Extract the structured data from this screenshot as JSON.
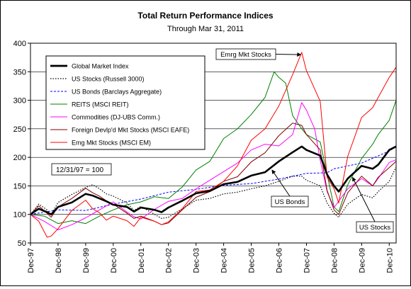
{
  "chart_data": {
    "type": "line",
    "title": "Total Return Performance Indices",
    "subtitle": "Through Mar 31, 2011",
    "xlabel": "",
    "ylabel": "",
    "ylim": [
      50,
      400
    ],
    "yticks": [
      50,
      100,
      150,
      200,
      250,
      300,
      350,
      400
    ],
    "xlim": [
      1998.0,
      2011.25
    ],
    "xticks": [
      "Dec-97",
      "Dec-98",
      "Dec-99",
      "Dec-00",
      "Dec-01",
      "Dec-02",
      "Dec-03",
      "Dec-04",
      "Dec-05",
      "Dec-06",
      "Dec-07",
      "Dec-08",
      "Dec-09",
      "Dec-10"
    ],
    "grid": "horizontal",
    "legend_position": "top-left",
    "base_note": "12/31/97 = 100",
    "series": [
      {
        "name": "Global Market Index",
        "color": "#000000",
        "style": "solid-thick",
        "points": [
          [
            1998.0,
            100
          ],
          [
            1998.3,
            110
          ],
          [
            1998.6,
            104
          ],
          [
            1998.75,
            100
          ],
          [
            1999.0,
            113
          ],
          [
            1999.5,
            121
          ],
          [
            2000.0,
            136
          ],
          [
            2000.25,
            133
          ],
          [
            2000.5,
            128
          ],
          [
            2000.75,
            123
          ],
          [
            2001.0,
            117
          ],
          [
            2001.5,
            113
          ],
          [
            2001.75,
            105
          ],
          [
            2002.0,
            112
          ],
          [
            2002.5,
            108
          ],
          [
            2002.75,
            104
          ],
          [
            2003.0,
            112
          ],
          [
            2003.5,
            124
          ],
          [
            2004.0,
            137
          ],
          [
            2004.5,
            141
          ],
          [
            2005.0,
            153
          ],
          [
            2005.5,
            157
          ],
          [
            2006.0,
            168
          ],
          [
            2006.5,
            174
          ],
          [
            2007.0,
            193
          ],
          [
            2007.5,
            209
          ],
          [
            2007.83,
            219
          ],
          [
            2008.0,
            213
          ],
          [
            2008.5,
            203
          ],
          [
            2008.75,
            170
          ],
          [
            2009.0,
            150
          ],
          [
            2009.17,
            140
          ],
          [
            2009.5,
            163
          ],
          [
            2010.0,
            185
          ],
          [
            2010.4,
            180
          ],
          [
            2010.6,
            187
          ],
          [
            2011.0,
            213
          ],
          [
            2011.25,
            219
          ]
        ]
      },
      {
        "name": "US Stocks (Russell 3000)",
        "color": "#000000",
        "style": "dotted",
        "points": [
          [
            1998.0,
            100
          ],
          [
            1998.3,
            118
          ],
          [
            1998.6,
            108
          ],
          [
            1998.75,
            99
          ],
          [
            1999.0,
            121
          ],
          [
            1999.5,
            135
          ],
          [
            2000.0,
            147
          ],
          [
            2000.25,
            152
          ],
          [
            2000.5,
            145
          ],
          [
            2000.75,
            136
          ],
          [
            2001.0,
            132
          ],
          [
            2001.5,
            120
          ],
          [
            2001.75,
            107
          ],
          [
            2002.0,
            114
          ],
          [
            2002.5,
            100
          ],
          [
            2002.75,
            93
          ],
          [
            2003.0,
            95
          ],
          [
            2003.5,
            110
          ],
          [
            2004.0,
            125
          ],
          [
            2004.5,
            128
          ],
          [
            2005.0,
            136
          ],
          [
            2005.5,
            139
          ],
          [
            2006.0,
            145
          ],
          [
            2006.5,
            150
          ],
          [
            2007.0,
            158
          ],
          [
            2007.5,
            167
          ],
          [
            2007.83,
            167
          ],
          [
            2008.0,
            160
          ],
          [
            2008.5,
            150
          ],
          [
            2008.75,
            120
          ],
          [
            2009.0,
            102
          ],
          [
            2009.17,
            95
          ],
          [
            2009.5,
            118
          ],
          [
            2010.0,
            135
          ],
          [
            2010.4,
            129
          ],
          [
            2010.6,
            140
          ],
          [
            2011.0,
            158
          ],
          [
            2011.25,
            183
          ]
        ]
      },
      {
        "name": "US Bonds (Barclays Aggregate)",
        "color": "#0000ff",
        "style": "dashed",
        "points": [
          [
            1998.0,
            100
          ],
          [
            1999.0,
            108
          ],
          [
            2000.0,
            107
          ],
          [
            2001.0,
            118
          ],
          [
            2002.0,
            127
          ],
          [
            2003.0,
            139
          ],
          [
            2004.0,
            144
          ],
          [
            2005.0,
            151
          ],
          [
            2006.0,
            154
          ],
          [
            2007.0,
            162
          ],
          [
            2008.0,
            172
          ],
          [
            2008.75,
            173
          ],
          [
            2009.0,
            180
          ],
          [
            2010.0,
            190
          ],
          [
            2011.0,
            211
          ],
          [
            2011.25,
            219
          ]
        ]
      },
      {
        "name": "REITS (MSCI REIT)",
        "color": "#008000",
        "style": "solid",
        "points": [
          [
            1998.0,
            100
          ],
          [
            1998.5,
            97
          ],
          [
            1999.0,
            84
          ],
          [
            1999.5,
            89
          ],
          [
            2000.0,
            84
          ],
          [
            2000.5,
            97
          ],
          [
            2001.0,
            108
          ],
          [
            2001.5,
            117
          ],
          [
            2002.0,
            122
          ],
          [
            2002.5,
            131
          ],
          [
            2003.0,
            128
          ],
          [
            2003.5,
            148
          ],
          [
            2004.0,
            178
          ],
          [
            2004.5,
            193
          ],
          [
            2005.0,
            233
          ],
          [
            2005.5,
            250
          ],
          [
            2006.0,
            275
          ],
          [
            2006.5,
            305
          ],
          [
            2006.83,
            350
          ],
          [
            2007.0,
            340
          ],
          [
            2007.25,
            330
          ],
          [
            2007.5,
            273
          ],
          [
            2007.83,
            250
          ],
          [
            2008.0,
            240
          ],
          [
            2008.5,
            227
          ],
          [
            2008.75,
            170
          ],
          [
            2009.0,
            113
          ],
          [
            2009.17,
            105
          ],
          [
            2009.5,
            152
          ],
          [
            2010.0,
            198
          ],
          [
            2010.4,
            223
          ],
          [
            2010.6,
            240
          ],
          [
            2011.0,
            265
          ],
          [
            2011.25,
            300
          ]
        ]
      },
      {
        "name": "Commodities (DJ-UBS Comm.)",
        "color": "#ff00ff",
        "style": "solid",
        "points": [
          [
            1998.0,
            100
          ],
          [
            1998.5,
            88
          ],
          [
            1999.0,
            73
          ],
          [
            1999.5,
            82
          ],
          [
            2000.0,
            94
          ],
          [
            2000.5,
            108
          ],
          [
            2001.0,
            122
          ],
          [
            2001.5,
            104
          ],
          [
            2001.75,
            96
          ],
          [
            2002.0,
            92
          ],
          [
            2002.5,
            109
          ],
          [
            2003.0,
            123
          ],
          [
            2003.5,
            128
          ],
          [
            2004.0,
            145
          ],
          [
            2004.5,
            160
          ],
          [
            2005.0,
            175
          ],
          [
            2005.5,
            190
          ],
          [
            2006.0,
            213
          ],
          [
            2006.5,
            223
          ],
          [
            2007.0,
            220
          ],
          [
            2007.5,
            240
          ],
          [
            2007.83,
            296
          ],
          [
            2008.0,
            283
          ],
          [
            2008.3,
            250
          ],
          [
            2008.5,
            195
          ],
          [
            2008.75,
            140
          ],
          [
            2009.0,
            112
          ],
          [
            2009.5,
            145
          ],
          [
            2010.0,
            163
          ],
          [
            2010.4,
            150
          ],
          [
            2010.6,
            163
          ],
          [
            2011.0,
            191
          ],
          [
            2011.25,
            196
          ]
        ]
      },
      {
        "name": "Foreign Devlp'd Mkt Stocks (MSCI EAFE)",
        "color": "#800000",
        "style": "solid",
        "points": [
          [
            1998.0,
            100
          ],
          [
            1998.3,
            115
          ],
          [
            1998.6,
            102
          ],
          [
            1998.75,
            95
          ],
          [
            1999.0,
            113
          ],
          [
            1999.5,
            128
          ],
          [
            2000.0,
            146
          ],
          [
            2000.25,
            138
          ],
          [
            2000.5,
            132
          ],
          [
            2000.75,
            124
          ],
          [
            2001.0,
            118
          ],
          [
            2001.5,
            102
          ],
          [
            2001.75,
            93
          ],
          [
            2002.0,
            97
          ],
          [
            2002.5,
            88
          ],
          [
            2002.75,
            82
          ],
          [
            2003.0,
            85
          ],
          [
            2003.5,
            108
          ],
          [
            2004.0,
            130
          ],
          [
            2004.5,
            140
          ],
          [
            2005.0,
            158
          ],
          [
            2005.5,
            166
          ],
          [
            2006.0,
            192
          ],
          [
            2006.5,
            208
          ],
          [
            2007.0,
            238
          ],
          [
            2007.5,
            260
          ],
          [
            2007.83,
            256
          ],
          [
            2008.0,
            240
          ],
          [
            2008.5,
            213
          ],
          [
            2008.75,
            142
          ],
          [
            2009.0,
            108
          ],
          [
            2009.17,
            100
          ],
          [
            2009.5,
            138
          ],
          [
            2010.0,
            167
          ],
          [
            2010.4,
            150
          ],
          [
            2010.6,
            165
          ],
          [
            2011.0,
            182
          ],
          [
            2011.25,
            193
          ]
        ]
      },
      {
        "name": "Emg Mkt Stocks (MSCI EM)",
        "color": "#ff0000",
        "style": "solid",
        "points": [
          [
            1998.0,
            100
          ],
          [
            1998.3,
            88
          ],
          [
            1998.6,
            60
          ],
          [
            1998.75,
            62
          ],
          [
            1999.0,
            75
          ],
          [
            1999.5,
            107
          ],
          [
            2000.0,
            125
          ],
          [
            2000.25,
            110
          ],
          [
            2000.5,
            103
          ],
          [
            2000.75,
            90
          ],
          [
            2001.0,
            97
          ],
          [
            2001.5,
            89
          ],
          [
            2001.75,
            79
          ],
          [
            2002.0,
            95
          ],
          [
            2002.5,
            88
          ],
          [
            2002.75,
            82
          ],
          [
            2003.0,
            87
          ],
          [
            2003.5,
            110
          ],
          [
            2004.0,
            140
          ],
          [
            2004.5,
            143
          ],
          [
            2005.0,
            158
          ],
          [
            2005.5,
            185
          ],
          [
            2006.0,
            230
          ],
          [
            2006.5,
            250
          ],
          [
            2007.0,
            290
          ],
          [
            2007.5,
            345
          ],
          [
            2007.83,
            384
          ],
          [
            2008.0,
            352
          ],
          [
            2008.5,
            298
          ],
          [
            2008.75,
            165
          ],
          [
            2009.0,
            145
          ],
          [
            2009.17,
            120
          ],
          [
            2009.5,
            202
          ],
          [
            2010.0,
            270
          ],
          [
            2010.4,
            287
          ],
          [
            2010.6,
            305
          ],
          [
            2011.0,
            340
          ],
          [
            2011.25,
            358
          ]
        ]
      }
    ],
    "annotations": [
      {
        "label": "Emrg Mkt Stocks",
        "target": [
          2007.8,
          380
        ]
      },
      {
        "label": "US Bonds",
        "target": [
          2006.75,
          178
        ]
      },
      {
        "label": "US Stocks",
        "target": [
          2009.67,
          165
        ]
      }
    ]
  }
}
